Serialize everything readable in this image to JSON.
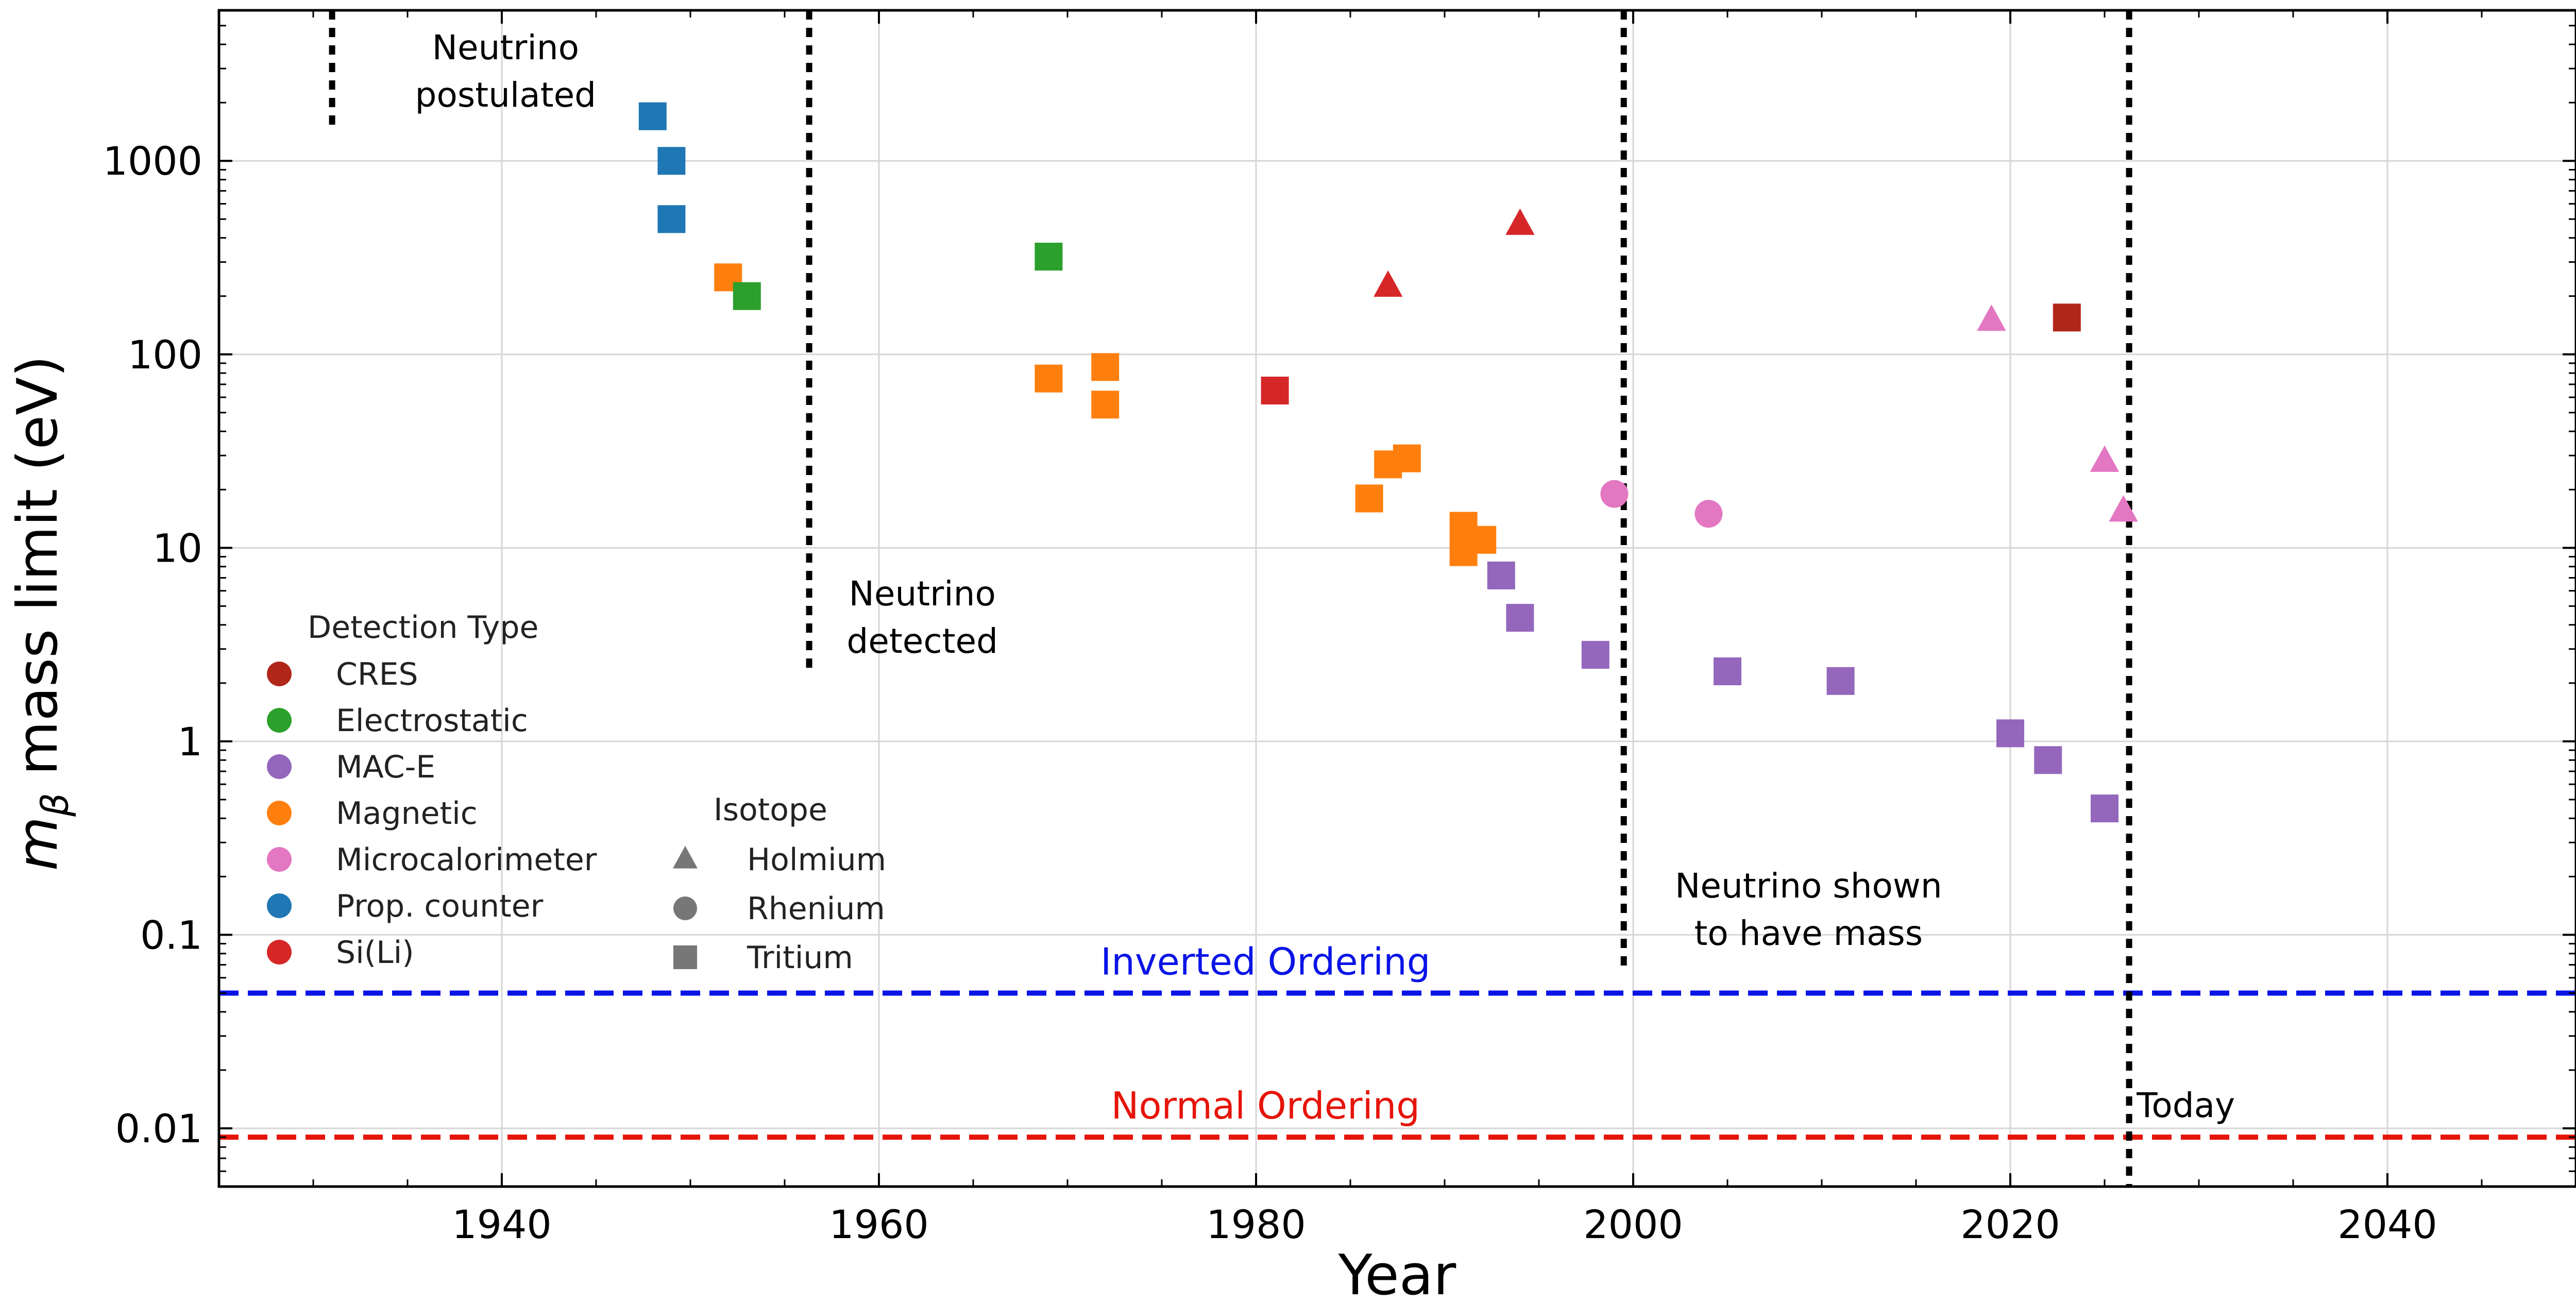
{
  "chart_data": {
    "type": "scatter",
    "xlabel": "Year",
    "ylabel": "m_β mass limit (eV)",
    "ylabel_parts": {
      "symbol": "m",
      "subscript": "β",
      "rest": " mass limit (eV)"
    },
    "x_range": [
      1925,
      2050
    ],
    "y_range": [
      0.005,
      6000
    ],
    "y_scale": "log",
    "grid": true,
    "x_ticks": [
      {
        "value": 1940,
        "label": "1940"
      },
      {
        "value": 1960,
        "label": "1960"
      },
      {
        "value": 1980,
        "label": "1980"
      },
      {
        "value": 2000,
        "label": "2000"
      },
      {
        "value": 2020,
        "label": "2020"
      },
      {
        "value": 2040,
        "label": "2040"
      }
    ],
    "y_ticks": [
      {
        "value": 0.01,
        "label": "0.01"
      },
      {
        "value": 0.1,
        "label": "0.1"
      },
      {
        "value": 1,
        "label": "1"
      },
      {
        "value": 10,
        "label": "10"
      },
      {
        "value": 100,
        "label": "100"
      },
      {
        "value": 1000,
        "label": "1000"
      }
    ],
    "detection_types": [
      {
        "key": "cres",
        "label": "CRES",
        "color": "#b0271a"
      },
      {
        "key": "electrostatic",
        "label": "Electrostatic",
        "color": "#2ca02c"
      },
      {
        "key": "mace",
        "label": "MAC-E",
        "color": "#9467bd"
      },
      {
        "key": "magnetic",
        "label": "Magnetic",
        "color": "#ff7f0e"
      },
      {
        "key": "microcal",
        "label": "Microcalorimeter",
        "color": "#e377c2"
      },
      {
        "key": "prop",
        "label": "Prop. counter",
        "color": "#1f77b4"
      },
      {
        "key": "sili",
        "label": "Si(Li)",
        "color": "#d62728"
      }
    ],
    "isotopes": [
      {
        "key": "holmium",
        "label": "Holmium",
        "marker": "triangle"
      },
      {
        "key": "rhenium",
        "label": "Rhenium",
        "marker": "circle"
      },
      {
        "key": "tritium",
        "label": "Tritium",
        "marker": "square"
      }
    ],
    "legend": {
      "detection_title": "Detection Type",
      "isotope_title": "Isotope",
      "placement": "lower-left"
    },
    "points": [
      {
        "year": 1948,
        "value": 1700,
        "detection": "prop",
        "isotope": "tritium"
      },
      {
        "year": 1949,
        "value": 1000,
        "detection": "prop",
        "isotope": "tritium"
      },
      {
        "year": 1949,
        "value": 500,
        "detection": "prop",
        "isotope": "tritium"
      },
      {
        "year": 1952,
        "value": 250,
        "detection": "magnetic",
        "isotope": "tritium"
      },
      {
        "year": 1953,
        "value": 200,
        "detection": "electrostatic",
        "isotope": "tritium"
      },
      {
        "year": 1969,
        "value": 320,
        "detection": "electrostatic",
        "isotope": "tritium"
      },
      {
        "year": 1969,
        "value": 75,
        "detection": "magnetic",
        "isotope": "tritium"
      },
      {
        "year": 1972,
        "value": 86,
        "detection": "magnetic",
        "isotope": "tritium"
      },
      {
        "year": 1972,
        "value": 55,
        "detection": "magnetic",
        "isotope": "tritium"
      },
      {
        "year": 1981,
        "value": 65,
        "detection": "sili",
        "isotope": "tritium"
      },
      {
        "year": 1986,
        "value": 18,
        "detection": "magnetic",
        "isotope": "tritium"
      },
      {
        "year": 1987,
        "value": 27,
        "detection": "magnetic",
        "isotope": "tritium"
      },
      {
        "year": 1987,
        "value": 225,
        "detection": "sili",
        "isotope": "holmium"
      },
      {
        "year": 1988,
        "value": 29,
        "detection": "magnetic",
        "isotope": "tritium"
      },
      {
        "year": 1991,
        "value": 13,
        "detection": "magnetic",
        "isotope": "tritium"
      },
      {
        "year": 1991,
        "value": 9.5,
        "detection": "magnetic",
        "isotope": "tritium"
      },
      {
        "year": 1992,
        "value": 11,
        "detection": "magnetic",
        "isotope": "tritium"
      },
      {
        "year": 1993,
        "value": 7.2,
        "detection": "mace",
        "isotope": "tritium"
      },
      {
        "year": 1994,
        "value": 4.35,
        "detection": "mace",
        "isotope": "tritium"
      },
      {
        "year": 1994,
        "value": 470,
        "detection": "sili",
        "isotope": "holmium"
      },
      {
        "year": 1998,
        "value": 2.8,
        "detection": "mace",
        "isotope": "tritium"
      },
      {
        "year": 1999,
        "value": 19,
        "detection": "microcal",
        "isotope": "rhenium"
      },
      {
        "year": 2004,
        "value": 15,
        "detection": "microcal",
        "isotope": "rhenium"
      },
      {
        "year": 2005,
        "value": 2.3,
        "detection": "mace",
        "isotope": "tritium"
      },
      {
        "year": 2011,
        "value": 2.05,
        "detection": "mace",
        "isotope": "tritium"
      },
      {
        "year": 2019,
        "value": 150,
        "detection": "microcal",
        "isotope": "holmium"
      },
      {
        "year": 2020,
        "value": 1.1,
        "detection": "mace",
        "isotope": "tritium"
      },
      {
        "year": 2022,
        "value": 0.8,
        "detection": "mace",
        "isotope": "tritium"
      },
      {
        "year": 2023,
        "value": 155,
        "detection": "cres",
        "isotope": "tritium"
      },
      {
        "year": 2025,
        "value": 0.45,
        "detection": "mace",
        "isotope": "tritium"
      },
      {
        "year": 2025,
        "value": 28,
        "detection": "microcal",
        "isotope": "holmium"
      },
      {
        "year": 2026,
        "value": 15.5,
        "detection": "microcal",
        "isotope": "holmium"
      }
    ],
    "vertical_events": [
      {
        "key": "postulated",
        "year": 1931,
        "y_top": 6000,
        "y_bottom": 1400,
        "lines": [
          "Neutrino",
          "postulated"
        ]
      },
      {
        "key": "detected",
        "year": 1956.3,
        "y_top": 6000,
        "y_bottom": 2.3,
        "lines": [
          "Neutrino",
          "detected"
        ]
      },
      {
        "key": "mass",
        "year": 1999.5,
        "y_top": 6000,
        "y_bottom": 0.068,
        "lines": [
          "Neutrino shown",
          "to have mass"
        ]
      },
      {
        "key": "today",
        "year": 2026.3,
        "y_top": 6000,
        "y_bottom": 0.005,
        "lines": [
          "Today"
        ]
      }
    ],
    "horizontal_lines": [
      {
        "key": "inverted",
        "value": 0.05,
        "label": "Inverted Ordering",
        "color": "#0a14e6"
      },
      {
        "key": "normal",
        "value": 0.009,
        "label": "Normal Ordering",
        "color": "#e6140a"
      }
    ]
  }
}
